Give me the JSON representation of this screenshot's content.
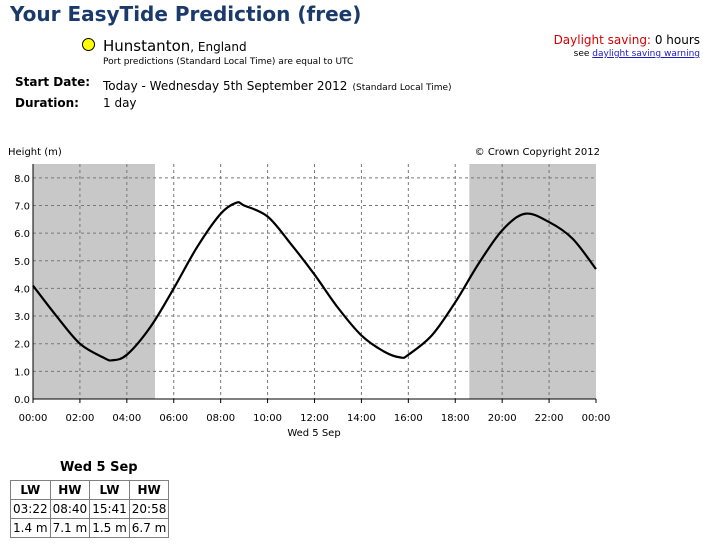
{
  "header": {
    "title": "Your EasyTide Prediction (free)",
    "port": "Hunstanton",
    "country": "England",
    "port_note": "Port predictions (Standard Local Time) are equal to UTC",
    "daylight_saving_label": "Daylight saving:",
    "daylight_saving_value": "0 hours",
    "see_text": "see",
    "daylight_link": "daylight saving warning",
    "start_date_label": "Start Date:",
    "start_date_value": "Today - Wednesday 5th September 2012",
    "start_date_note": "(Standard Local Time)",
    "duration_label": "Duration:",
    "duration_value": "1 day"
  },
  "chart_data": {
    "type": "line",
    "ylabel": "Height (m)",
    "copyright": "© Crown Copyright 2012",
    "date_label": "Wed 5 Sep",
    "x_ticks": [
      "00:00",
      "02:00",
      "04:00",
      "06:00",
      "08:00",
      "10:00",
      "12:00",
      "14:00",
      "16:00",
      "18:00",
      "20:00",
      "22:00",
      "00:00"
    ],
    "y_ticks": [
      "0.0",
      "1.0",
      "2.0",
      "3.0",
      "4.0",
      "5.0",
      "6.0",
      "7.0",
      "8.0"
    ],
    "xlim": [
      0,
      24
    ],
    "ylim": [
      0,
      8.5
    ],
    "grid": true,
    "night_shading": [
      [
        0,
        5.2
      ],
      [
        18.6,
        24
      ]
    ],
    "extremes": [
      {
        "time": 3.367,
        "height": 1.4
      },
      {
        "time": 8.667,
        "height": 7.1
      },
      {
        "time": 15.683,
        "height": 1.5
      },
      {
        "time": 20.967,
        "height": 6.7
      }
    ],
    "series": [
      {
        "x": [
          0,
          1,
          2,
          3,
          3.37,
          4,
          5,
          6,
          7,
          8,
          8.67,
          9,
          10,
          11,
          12,
          13,
          14,
          15,
          15.68,
          16,
          17,
          18,
          19,
          20,
          20.97,
          22,
          23,
          24
        ],
        "y": [
          4.1,
          3.0,
          2.0,
          1.5,
          1.4,
          1.6,
          2.6,
          4.0,
          5.5,
          6.7,
          7.1,
          7.0,
          6.6,
          5.6,
          4.5,
          3.3,
          2.3,
          1.7,
          1.5,
          1.6,
          2.3,
          3.5,
          4.9,
          6.1,
          6.7,
          6.4,
          5.8,
          4.7
        ]
      }
    ]
  },
  "table": {
    "date": "Wed 5 Sep",
    "headers": [
      "LW",
      "HW",
      "LW",
      "HW"
    ],
    "times": [
      "03:22",
      "08:40",
      "15:41",
      "20:58"
    ],
    "heights": [
      "1.4 m",
      "7.1 m",
      "1.5 m",
      "6.7 m"
    ]
  }
}
